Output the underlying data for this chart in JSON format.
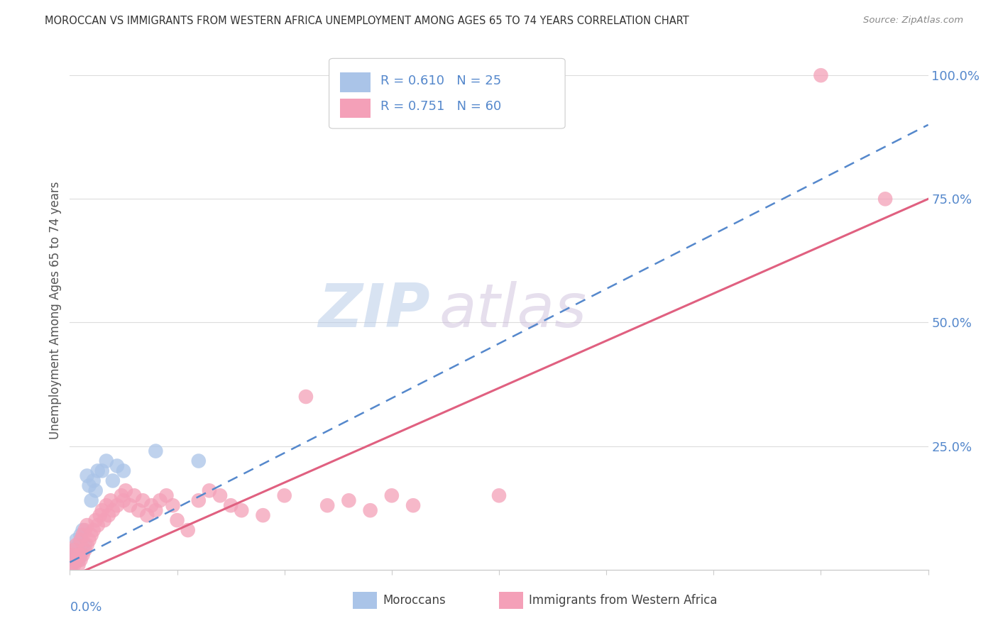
{
  "title": "MOROCCAN VS IMMIGRANTS FROM WESTERN AFRICA UNEMPLOYMENT AMONG AGES 65 TO 74 YEARS CORRELATION CHART",
  "source": "Source: ZipAtlas.com",
  "ylabel": "Unemployment Among Ages 65 to 74 years",
  "xlim": [
    0.0,
    0.4
  ],
  "ylim": [
    0.0,
    1.05
  ],
  "ytick_vals": [
    0.25,
    0.5,
    0.75,
    1.0
  ],
  "ytick_labels": [
    "25.0%",
    "50.0%",
    "75.0%",
    "100.0%"
  ],
  "moroccan_R": 0.61,
  "moroccan_N": 25,
  "western_africa_R": 0.751,
  "western_africa_N": 60,
  "moroccan_color": "#aac4e8",
  "moroccan_line_color": "#5588cc",
  "western_africa_color": "#f4a0b8",
  "western_africa_line_color": "#e06080",
  "watermark_zip": "ZIP",
  "watermark_atlas": "atlas",
  "legend_label_1": "Moroccans",
  "legend_label_2": "Immigrants from Western Africa",
  "moroccan_x": [
    0.001,
    0.002,
    0.002,
    0.003,
    0.003,
    0.004,
    0.004,
    0.005,
    0.005,
    0.006,
    0.006,
    0.007,
    0.008,
    0.009,
    0.01,
    0.011,
    0.012,
    0.013,
    0.015,
    0.017,
    0.02,
    0.022,
    0.025,
    0.04,
    0.06
  ],
  "moroccan_y": [
    0.01,
    0.02,
    0.04,
    0.03,
    0.06,
    0.02,
    0.05,
    0.03,
    0.07,
    0.04,
    0.08,
    0.05,
    0.19,
    0.17,
    0.14,
    0.18,
    0.16,
    0.2,
    0.2,
    0.22,
    0.18,
    0.21,
    0.2,
    0.24,
    0.22
  ],
  "western_africa_x": [
    0.001,
    0.001,
    0.002,
    0.002,
    0.003,
    0.003,
    0.004,
    0.004,
    0.005,
    0.005,
    0.006,
    0.006,
    0.007,
    0.007,
    0.008,
    0.008,
    0.009,
    0.01,
    0.011,
    0.012,
    0.013,
    0.014,
    0.015,
    0.016,
    0.017,
    0.018,
    0.019,
    0.02,
    0.022,
    0.024,
    0.025,
    0.026,
    0.028,
    0.03,
    0.032,
    0.034,
    0.036,
    0.038,
    0.04,
    0.042,
    0.045,
    0.048,
    0.05,
    0.055,
    0.06,
    0.065,
    0.07,
    0.075,
    0.08,
    0.09,
    0.1,
    0.11,
    0.12,
    0.13,
    0.14,
    0.15,
    0.16,
    0.2,
    0.35,
    0.38
  ],
  "western_africa_y": [
    0.01,
    0.03,
    0.01,
    0.04,
    0.02,
    0.05,
    0.01,
    0.03,
    0.02,
    0.06,
    0.03,
    0.07,
    0.04,
    0.08,
    0.05,
    0.09,
    0.06,
    0.07,
    0.08,
    0.1,
    0.09,
    0.11,
    0.12,
    0.1,
    0.13,
    0.11,
    0.14,
    0.12,
    0.13,
    0.15,
    0.14,
    0.16,
    0.13,
    0.15,
    0.12,
    0.14,
    0.11,
    0.13,
    0.12,
    0.14,
    0.15,
    0.13,
    0.1,
    0.08,
    0.14,
    0.16,
    0.15,
    0.13,
    0.12,
    0.11,
    0.15,
    0.35,
    0.13,
    0.14,
    0.12,
    0.15,
    0.13,
    0.15,
    1.0,
    0.75
  ],
  "moroccan_line_x0": 0.0,
  "moroccan_line_y0": 0.015,
  "moroccan_line_x1": 0.4,
  "moroccan_line_y1": 0.9,
  "western_line_x0": 0.0,
  "western_line_y0": -0.015,
  "western_line_x1": 0.4,
  "western_line_y1": 0.75
}
